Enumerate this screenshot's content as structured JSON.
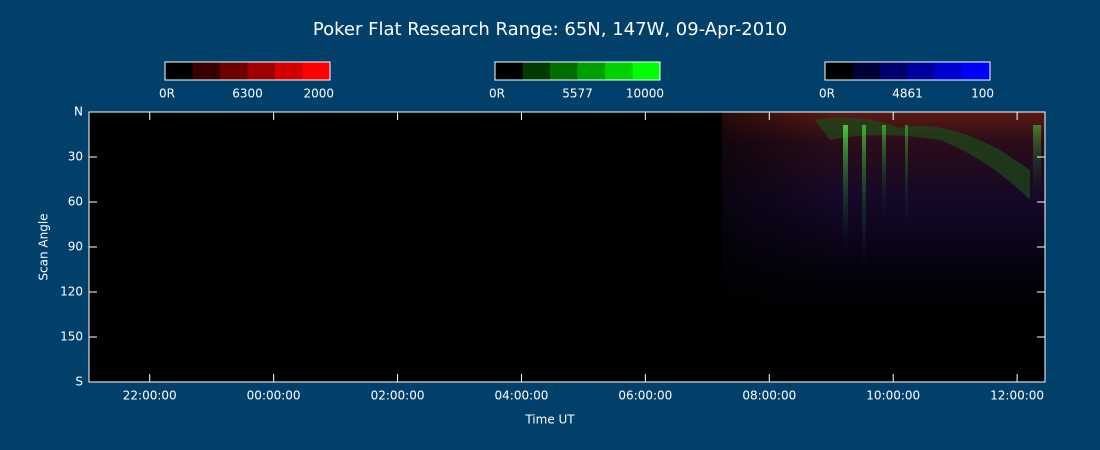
{
  "chart_data": {
    "type": "keogram",
    "title": "Poker Flat Research Range: 65N, 147W, 09-Apr-2010",
    "xlabel": "Time UT",
    "ylabel": "Scan Angle",
    "xlim": [
      21.02,
      36.45
    ],
    "xticks": [
      {
        "value": 22,
        "label": "22:00:00"
      },
      {
        "value": 24,
        "label": "00:00:00"
      },
      {
        "value": 26,
        "label": "02:00:00"
      },
      {
        "value": 28,
        "label": "04:00:00"
      },
      {
        "value": 30,
        "label": "06:00:00"
      },
      {
        "value": 32,
        "label": "08:00:00"
      },
      {
        "value": 34,
        "label": "10:00:00"
      },
      {
        "value": 36,
        "label": "12:00:00"
      }
    ],
    "ylim": [
      0,
      180
    ],
    "yticks": [
      {
        "value": 0,
        "label": "N"
      },
      30,
      60,
      90,
      120,
      150,
      {
        "value": 180,
        "label": "S"
      }
    ],
    "colorbars": [
      {
        "min_label": "0R",
        "wavelength": 6300,
        "max": 2000,
        "colors": [
          "#000000",
          "#3a0000",
          "#6e0000",
          "#a00000",
          "#d20000",
          "#ff0000"
        ]
      },
      {
        "min_label": "0R",
        "wavelength": 5577,
        "max": 10000,
        "colors": [
          "#000000",
          "#003a00",
          "#006e00",
          "#00a000",
          "#00d200",
          "#00ff00"
        ]
      },
      {
        "min_label": "0R",
        "wavelength": 4861,
        "max": 100,
        "colors": [
          "#000000",
          "#00003a",
          "#00006e",
          "#0000a0",
          "#0000d2",
          "#0000ff"
        ]
      }
    ]
  }
}
